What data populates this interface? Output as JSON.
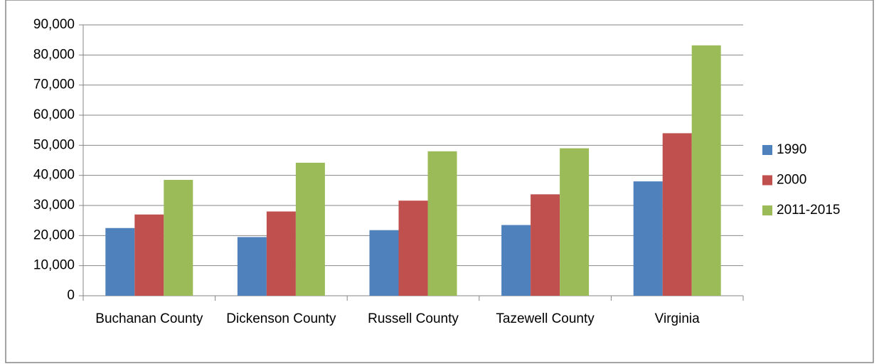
{
  "chart_data": {
    "type": "bar",
    "categories": [
      "Buchanan County",
      "Dickenson County",
      "Russell County",
      "Tazewell County",
      "Virginia"
    ],
    "series": [
      {
        "name": "1990",
        "color": "#4f81bd",
        "values": [
          22500,
          19500,
          21800,
          23500,
          38000
        ]
      },
      {
        "name": "2000",
        "color": "#c0504d",
        "values": [
          27000,
          28000,
          31600,
          33700,
          54000
        ]
      },
      {
        "name": "2011-2015",
        "color": "#9bbb59",
        "values": [
          38500,
          44200,
          48000,
          49000,
          83200
        ]
      }
    ],
    "ylim": [
      0,
      90000
    ],
    "yticks": [
      0,
      {
        "value": 10000,
        "label": "10,000"
      },
      {
        "value": 20000,
        "label": "20,000"
      },
      {
        "value": 30000,
        "label": "30,000"
      },
      {
        "value": 40000,
        "label": "40,000"
      },
      {
        "value": 50000,
        "label": "50,000"
      },
      {
        "value": 60000,
        "label": "60,000"
      },
      {
        "value": 70000,
        "label": "70,000"
      },
      {
        "value": 80000,
        "label": "80,000"
      },
      {
        "value": 90000,
        "label": "90,000"
      }
    ],
    "grid": true,
    "legend": "right"
  }
}
